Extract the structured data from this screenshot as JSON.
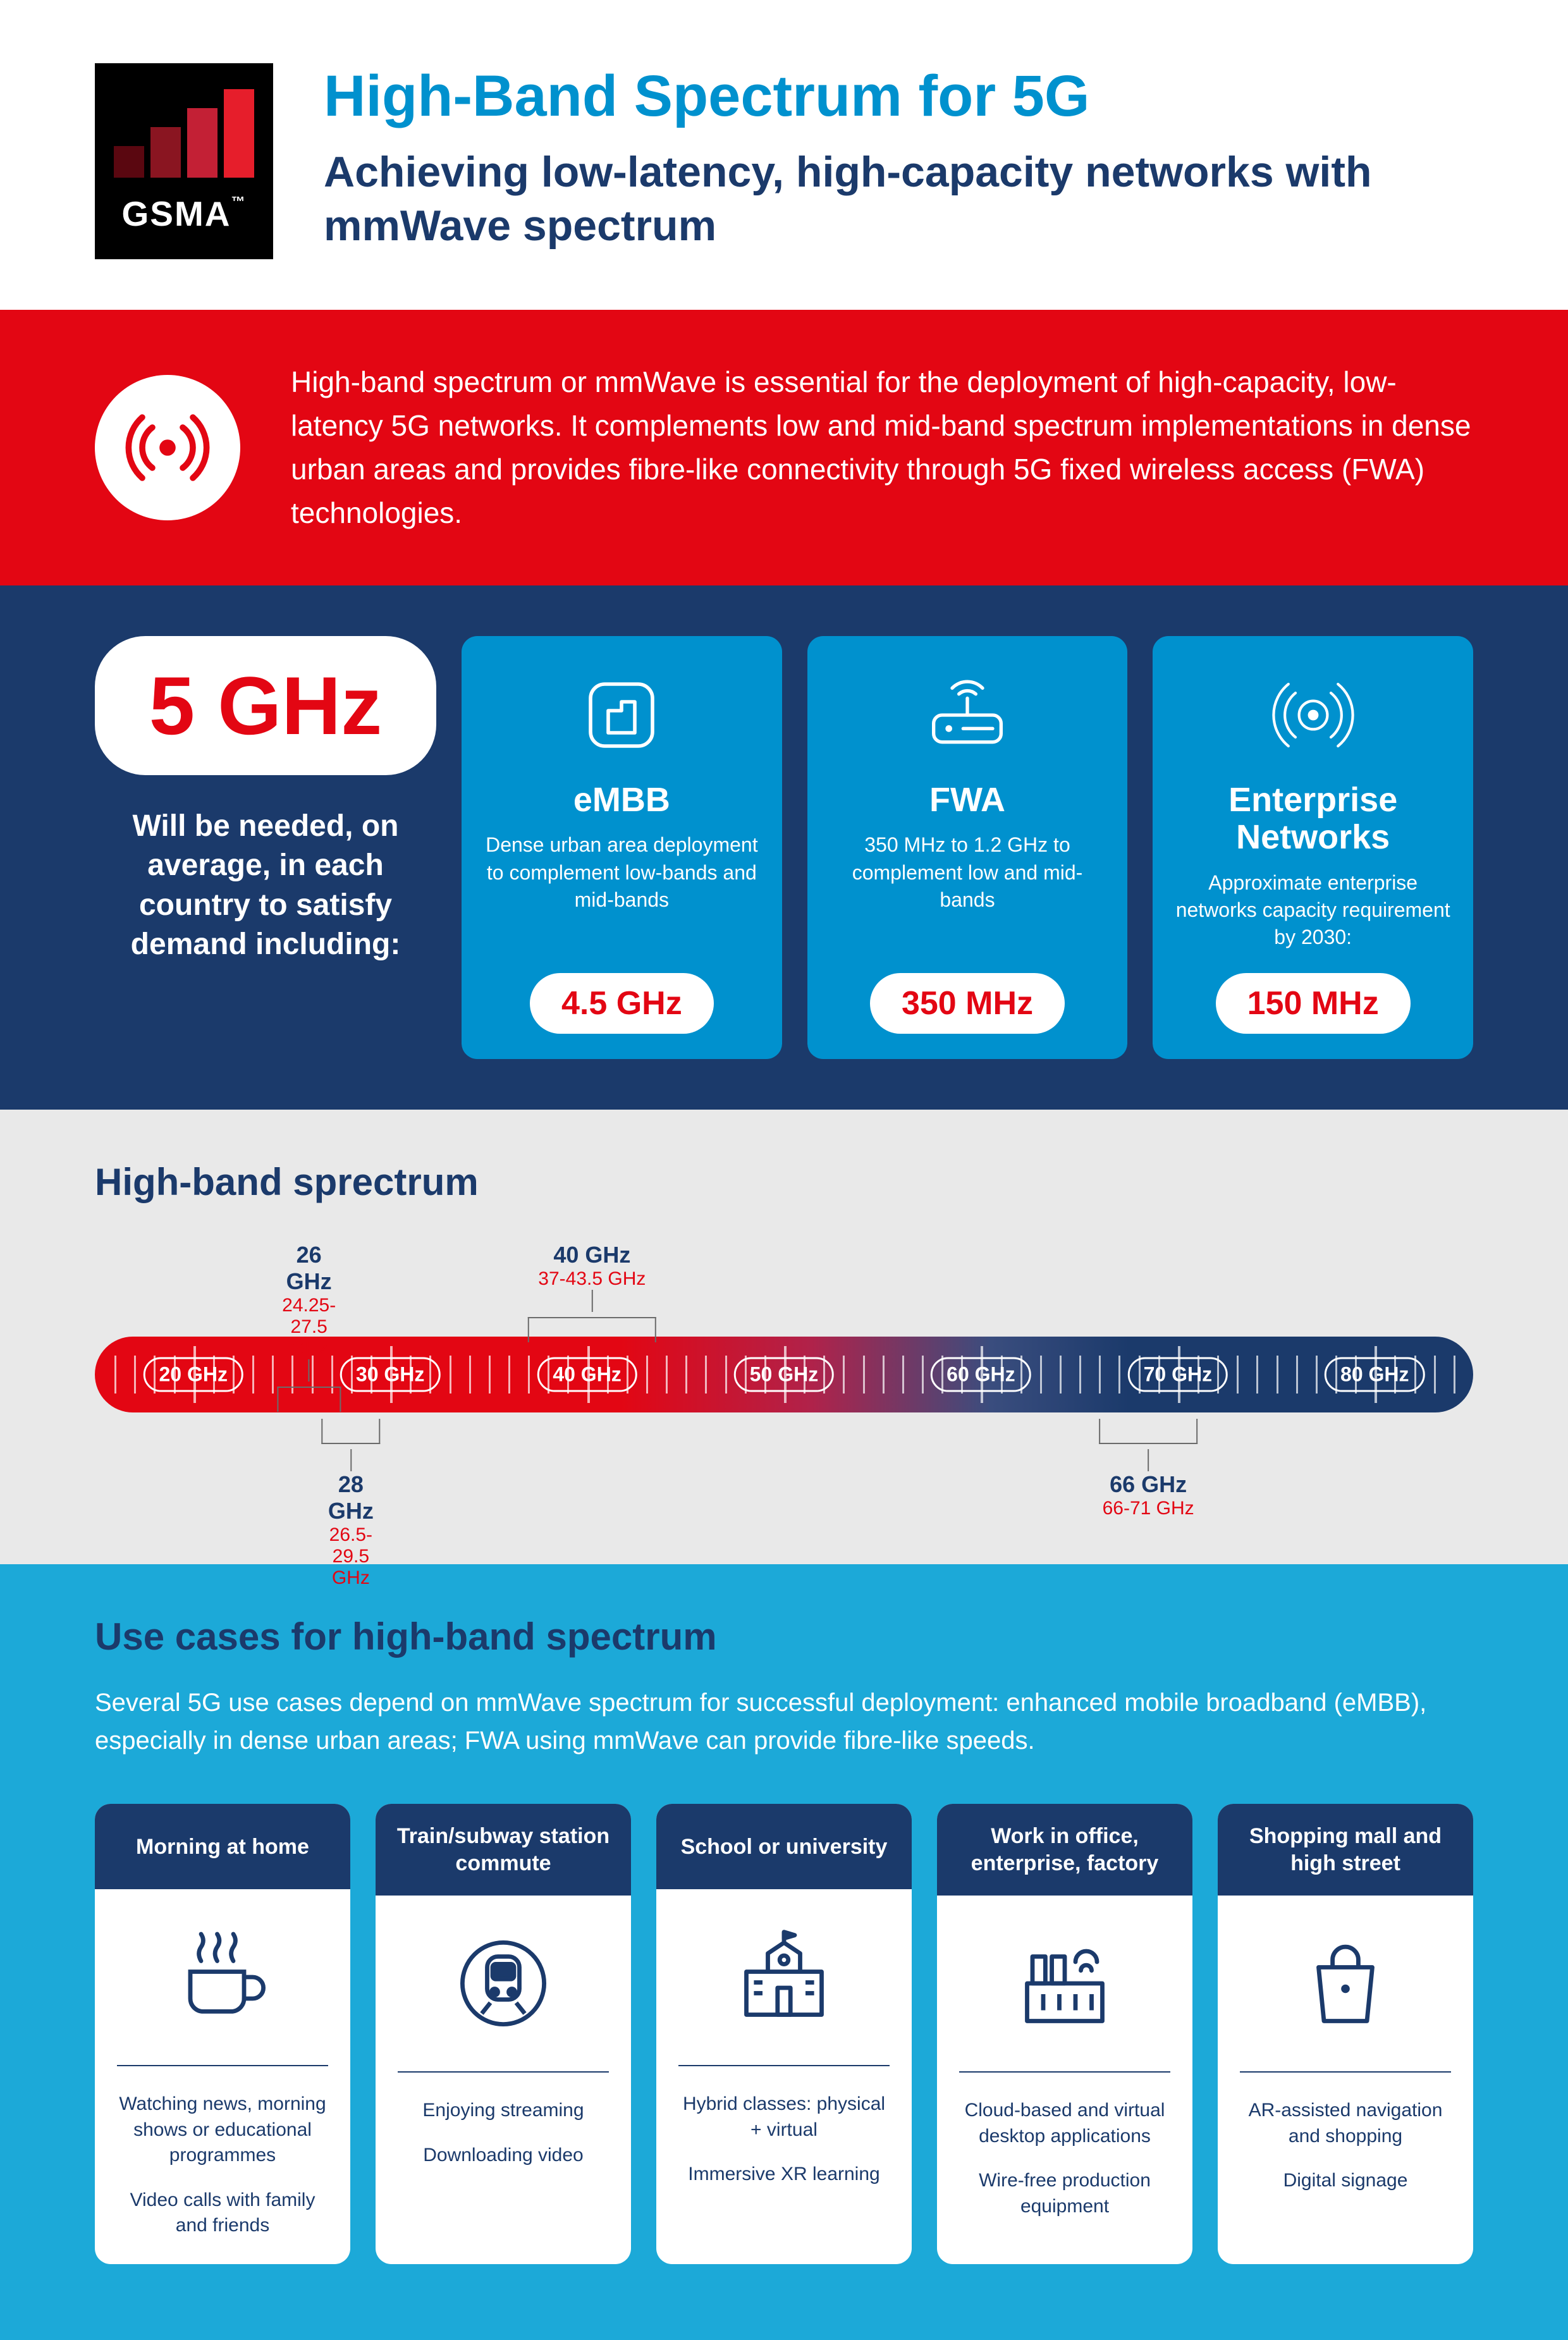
{
  "colors": {
    "brand_blue": "#0091ce",
    "navy": "#1b3a6b",
    "red": "#e30613",
    "cyan_bg": "#1ca9d8",
    "grey_bg": "#e9e9e9",
    "white": "#ffffff",
    "black": "#000000"
  },
  "logo": {
    "text": "GSMA",
    "tm": "™"
  },
  "header": {
    "title": "High-Band Spectrum for 5G",
    "subtitle": "Achieving low-latency, high-capacity networks with mmWave spectrum"
  },
  "red_banner": {
    "text": "High-band spectrum or mmWave is essential for the deployment of high-capacity, low-latency 5G networks. It complements low and mid-band spectrum implementations in dense urban areas and provides fibre-like connectivity through 5G fixed wireless access (FWA) technologies."
  },
  "navy": {
    "headline_value": "5 GHz",
    "headline_desc": "Will be needed, on average, in each country to satisfy demand including:",
    "cards": [
      {
        "title": "eMBB",
        "desc": "Dense urban area deployment to complement low-bands and mid-bands",
        "pill": "4.5 GHz"
      },
      {
        "title": "FWA",
        "desc": "350 MHz to 1.2 GHz to complement low and mid-bands",
        "pill": "350 MHz"
      },
      {
        "title": "Enterprise Networks",
        "desc": "Approximate enterprise networks capacity requirement by 2030:",
        "pill": "150 MHz"
      }
    ]
  },
  "spectrum": {
    "title": "High-band sprectrum",
    "gradient_stops": [
      "#e30613",
      "#1b3a6b"
    ],
    "range_ghz": [
      15,
      85
    ],
    "major_labels": [
      {
        "ghz": 20,
        "text": "20 GHz"
      },
      {
        "ghz": 30,
        "text": "30 GHz"
      },
      {
        "ghz": 40,
        "text": "40 GHz"
      },
      {
        "ghz": 50,
        "text": "50 GHz"
      },
      {
        "ghz": 60,
        "text": "60 GHz"
      },
      {
        "ghz": 70,
        "text": "70 GHz"
      },
      {
        "ghz": 80,
        "text": "80 GHz"
      }
    ],
    "bands_top": [
      {
        "title": "26 GHz",
        "range": "24.25-27.5 GHz",
        "lo": 24.25,
        "hi": 27.5
      },
      {
        "title": "40 GHz",
        "range": "37-43.5 GHz",
        "lo": 37,
        "hi": 43.5
      }
    ],
    "bands_bottom": [
      {
        "title": "28 GHz",
        "range": "26.5-29.5 GHz",
        "lo": 26.5,
        "hi": 29.5
      },
      {
        "title": "66 GHz",
        "range": "66-71 GHz",
        "lo": 66,
        "hi": 71
      }
    ]
  },
  "usecases": {
    "title": "Use cases for high-band spectrum",
    "intro": "Several 5G use cases depend on mmWave spectrum for successful deployment: enhanced mobile broadband (eMBB), especially in dense urban areas; FWA using mmWave can provide fibre-like speeds.",
    "cards": [
      {
        "header": "Morning at home",
        "icon": "coffee",
        "lines": [
          "Watching news, morning shows or educational programmes",
          "Video calls with family and friends"
        ]
      },
      {
        "header": "Train/subway station commute",
        "icon": "train",
        "lines": [
          "Enjoying streaming",
          "Downloading video"
        ]
      },
      {
        "header": "School or university",
        "icon": "school",
        "lines": [
          "Hybrid classes: physical + virtual",
          "Immersive XR learning"
        ]
      },
      {
        "header": "Work in office, enterprise, factory",
        "icon": "factory",
        "lines": [
          "Cloud-based and virtual desktop applications",
          "Wire-free production equipment"
        ]
      },
      {
        "header": "Shopping mall and high street",
        "icon": "shopping",
        "lines": [
          "AR-assisted navigation and shopping",
          "Digital signage"
        ]
      }
    ]
  }
}
